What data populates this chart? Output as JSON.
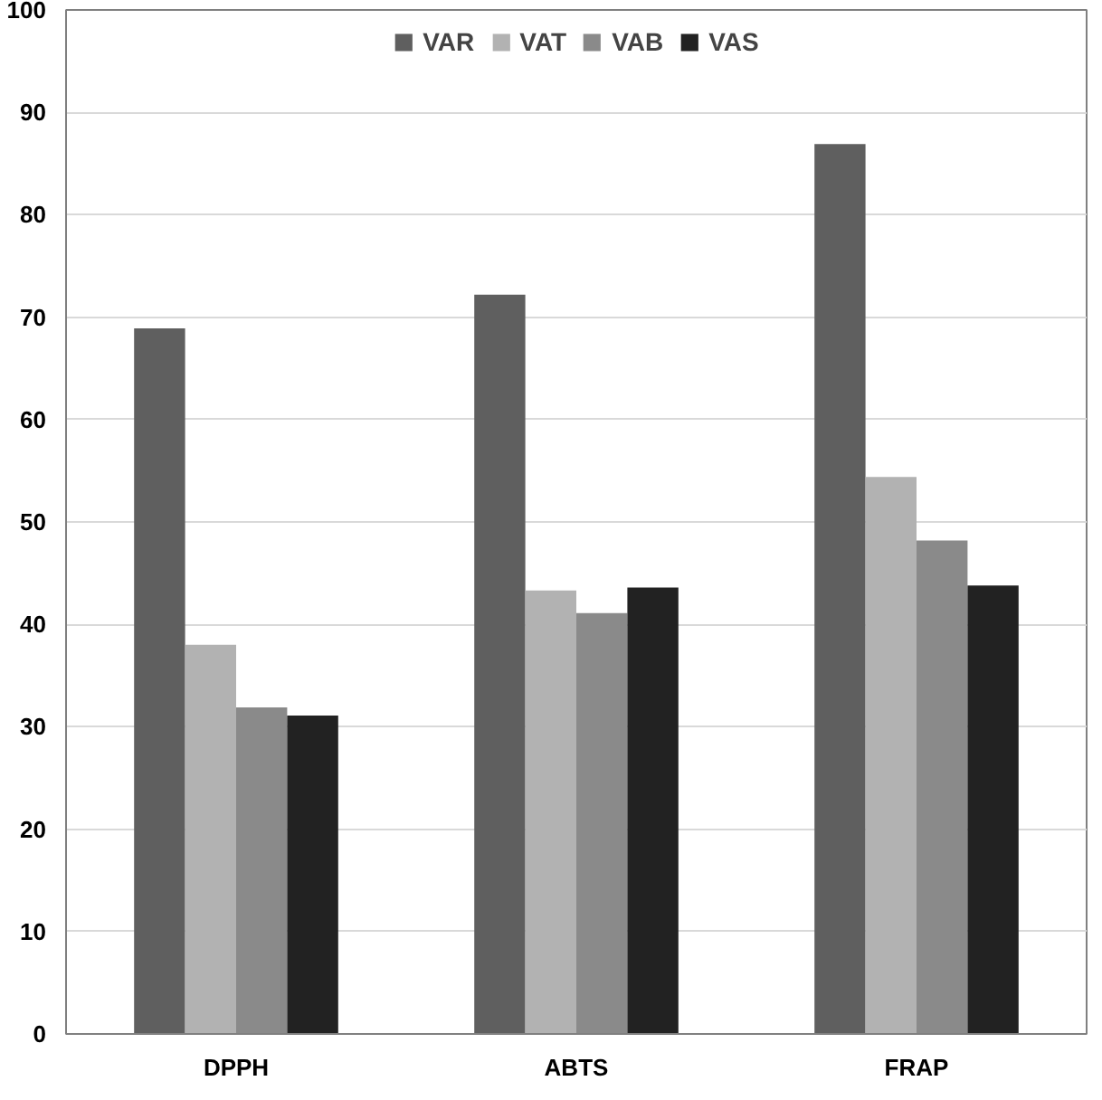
{
  "chart_data": {
    "type": "bar",
    "categories": [
      "DPPH",
      "ABTS",
      "FRAP"
    ],
    "series": [
      {
        "name": "VAR",
        "color": "#5f5f5f",
        "values": [
          68.9,
          72.2,
          86.9
        ]
      },
      {
        "name": "VAT",
        "color": "#b2b2b2",
        "values": [
          38.0,
          43.3,
          54.4
        ]
      },
      {
        "name": "VAB",
        "color": "#8a8a8a",
        "values": [
          31.9,
          41.1,
          48.2
        ]
      },
      {
        "name": "VAS",
        "color": "#222222",
        "values": [
          31.1,
          43.6,
          43.8
        ]
      }
    ],
    "ylim": [
      0,
      100
    ],
    "yticks": [
      0,
      10,
      20,
      30,
      40,
      50,
      60,
      70,
      80,
      90,
      100
    ],
    "grid": "y",
    "legend": "top"
  }
}
